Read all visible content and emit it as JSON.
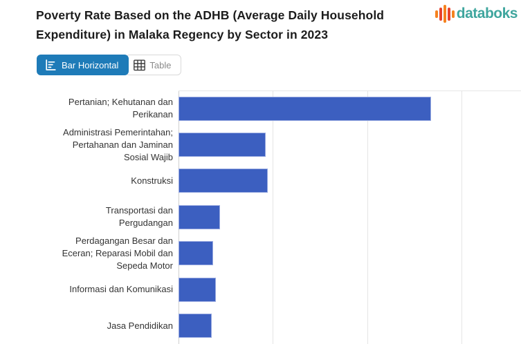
{
  "header": {
    "title_lines": [
      "Poverty Rate Based on the ADHB (Average Daily Household",
      "Expenditure) in Malaka Regency by Sector in 2023"
    ],
    "logo": {
      "text": "databoks",
      "icon": "databoks-bars-icon",
      "text_color": "#3fa69e",
      "bar_colors": [
        "#f5821f",
        "#e8432d",
        "#f5821f",
        "#e8432d",
        "#f5821f"
      ],
      "bar_heights": [
        11,
        19,
        26,
        19,
        11
      ]
    }
  },
  "toolbar": {
    "buttons": [
      {
        "label": "Bar Horizontal",
        "icon": "horizontal-bar-chart-icon",
        "active": true
      },
      {
        "label": "Table",
        "icon": "table-grid-icon",
        "active": false
      }
    ],
    "active_bg": "#1e7bb8",
    "inactive_text": "#8a8a8a"
  },
  "chart_data": {
    "type": "bar",
    "orientation": "horizontal",
    "title": "Poverty Rate Based on the ADHB (Average Daily Household Expenditure) in Malaka Regency by Sector in 2023",
    "categories": [
      "Pertanian; Kehutanan dan Perikanan",
      "Administrasi Pemerintahan; Pertahanan dan Jaminan Sosial Wajib",
      "Konstruksi",
      "Transportasi dan Pergudangan",
      "Perdagangan Besar dan Eceran; Reparasi Mobil dan Sepeda Motor",
      "Informasi dan Komunikasi",
      "Jasa Pendidikan"
    ],
    "category_label_lines": [
      [
        "Pertanian; Kehutanan dan",
        "Perikanan"
      ],
      [
        "Administrasi Pemerintahan;",
        "Pertahanan dan Jaminan",
        "Sosial Wajib"
      ],
      [
        "Konstruksi"
      ],
      [
        "Transportasi dan",
        "Pergudangan"
      ],
      [
        "Perdagangan Besar dan",
        "Eceran; Reparasi Mobil dan",
        "Sepeda Motor"
      ],
      [
        "Informasi dan Komunikasi"
      ],
      [
        "Jasa Pendidikan"
      ]
    ],
    "values": [
      53.6,
      18.5,
      18.9,
      8.8,
      7.4,
      7.9,
      7.0
    ],
    "values_estimated_from_gridlines": true,
    "xlabel": "",
    "ylabel": "",
    "xlim": [
      0,
      72.6
    ],
    "gridlines_x": [
      20,
      40,
      60
    ],
    "grid": true,
    "legend": "none",
    "bar_color": "#3c5fc0",
    "bar_border_color": "#98a9e0",
    "note": "x-axis tick labels are cropped out of the visible screenshot; chart is clipped at the bottom edge"
  }
}
